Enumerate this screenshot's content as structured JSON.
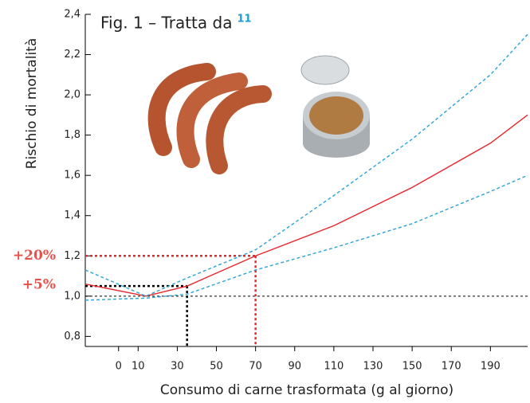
{
  "chart_data": {
    "type": "line",
    "title": "Fig. 1 – Tratta da",
    "title_reference": "11",
    "y_label": "Rischio di mortalità",
    "x_label": "Consumo di carne trasformata (g al giorno)",
    "x": [
      -17,
      14,
      35,
      70,
      110,
      150,
      190,
      209
    ],
    "series": [
      {
        "color": "#e8262b",
        "style": "solid",
        "values": [
          1.06,
          1.0,
          1.05,
          1.2,
          1.35,
          1.54,
          1.76,
          1.9
        ]
      },
      {
        "color": "#29a3d9",
        "style": "dashed",
        "values": [
          1.13,
          1.0,
          1.09,
          1.23,
          1.5,
          1.78,
          2.1,
          2.3
        ]
      },
      {
        "color": "#29a3d9",
        "style": "dashed",
        "values": [
          0.98,
          0.99,
          1.01,
          1.13,
          1.24,
          1.36,
          1.52,
          1.6
        ]
      }
    ],
    "xlim": [
      -17,
      209
    ],
    "ylim": [
      0.75,
      2.4
    ],
    "xticks": [
      0,
      10,
      30,
      50,
      70,
      90,
      110,
      130,
      150,
      170,
      190
    ],
    "yticks": [
      {
        "value": 0.8,
        "label": "0,8"
      },
      {
        "value": 1.0,
        "label": "1,0"
      },
      {
        "value": 1.2,
        "label": "1,2"
      },
      {
        "value": 1.4,
        "label": "1,4"
      },
      {
        "value": 1.6,
        "label": "1,6"
      },
      {
        "value": 1.8,
        "label": "1,8"
      },
      {
        "value": 2.0,
        "label": "2,0"
      },
      {
        "value": 2.2,
        "label": "2,2"
      },
      {
        "value": 2.4,
        "label": "2,4"
      }
    ],
    "baseline": 1.0,
    "annotations": [
      {
        "label": "+20%",
        "x": 70,
        "y": 1.2,
        "color": "#e8262b",
        "label_color": "#e8504a"
      },
      {
        "label": "+5%",
        "x": 35,
        "y": 1.05,
        "color": "#000000",
        "label_color": "#e8504a"
      }
    ]
  }
}
